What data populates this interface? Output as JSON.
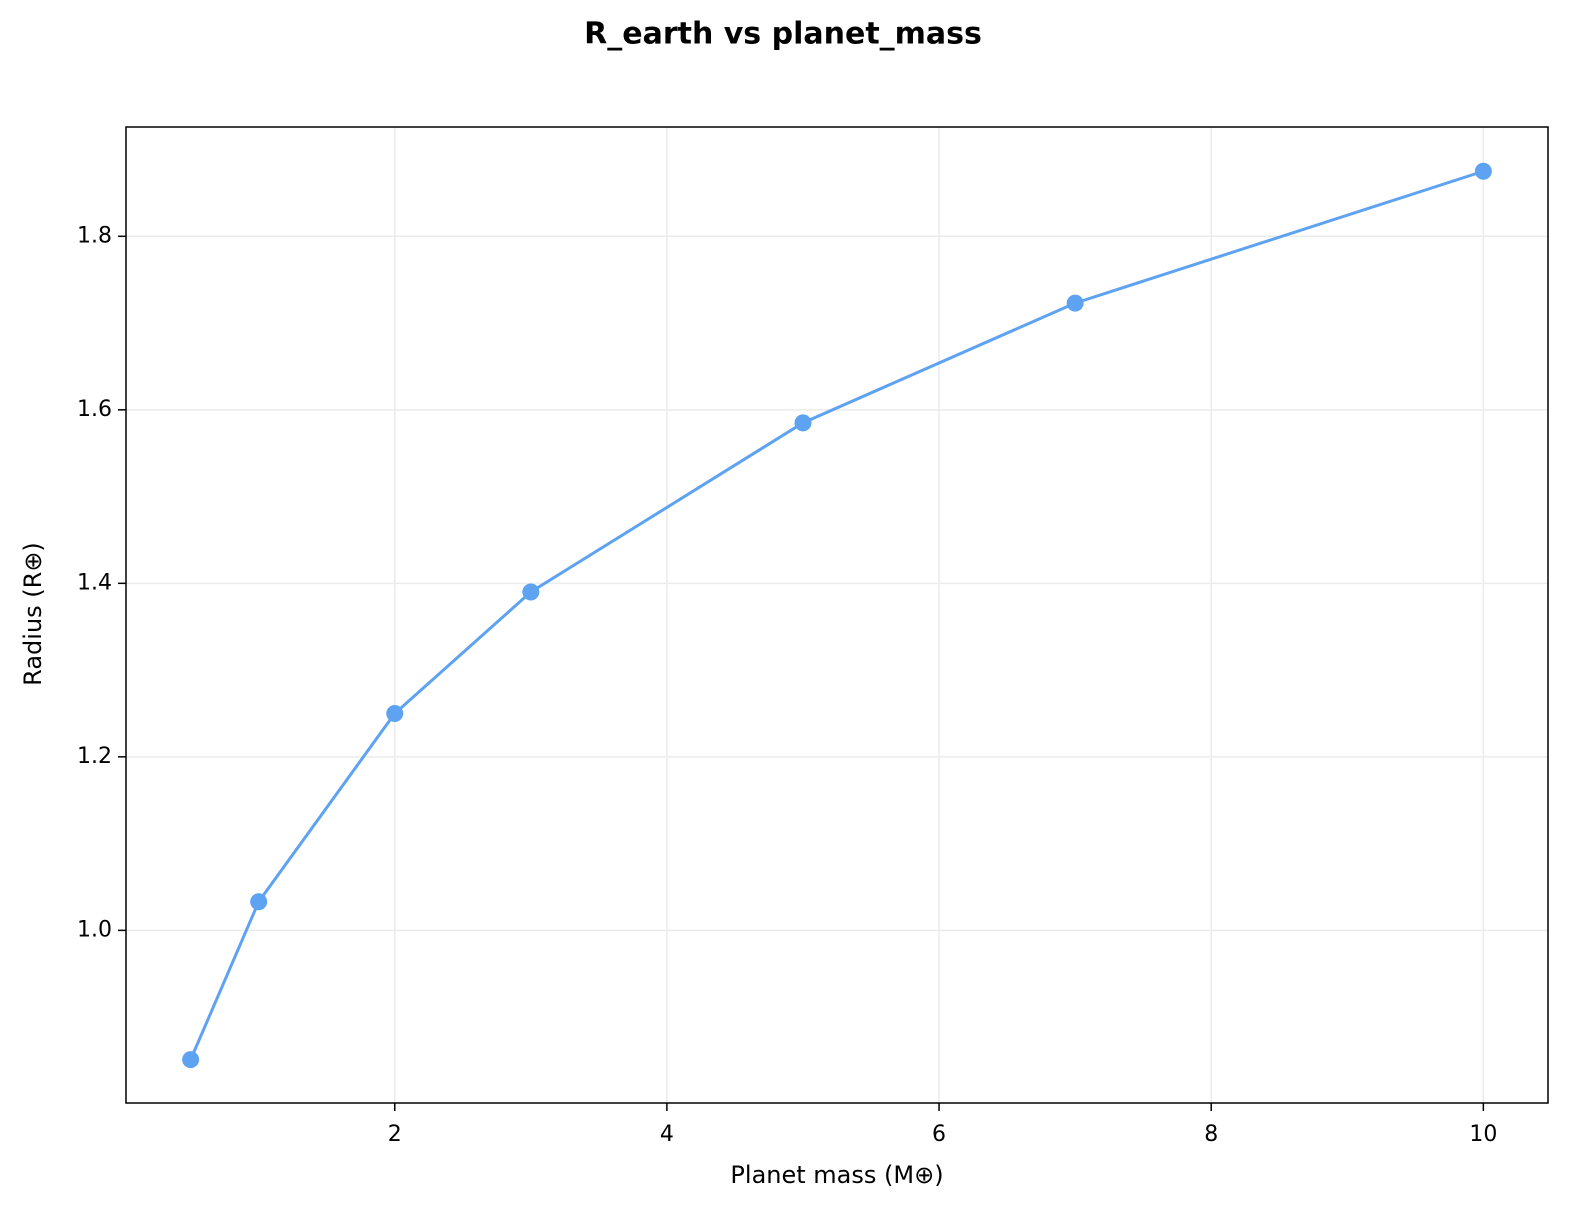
{
  "chart_data": {
    "type": "line",
    "title": "R_earth vs planet_mass",
    "x_label": "Planet mass (M⊕)",
    "y_label": "Radius (R⊕)",
    "x": [
      0.5,
      1,
      2,
      3,
      5,
      7,
      10
    ],
    "series": [
      {
        "name": "R_earth",
        "color": "#5ea2f2",
        "values": [
          0.851,
          1.033,
          1.25,
          1.39,
          1.585,
          1.723,
          1.875
        ]
      }
    ],
    "xlim": [
      0.025,
      10.475
    ],
    "ylim": [
      0.801,
      1.926
    ],
    "xticks": [
      2,
      4,
      6,
      8,
      10
    ],
    "yticks": [
      {
        "value": 1.0,
        "label": "1.0"
      },
      1.2,
      1.4,
      1.6,
      1.8
    ],
    "grid": true,
    "markers": true
  }
}
